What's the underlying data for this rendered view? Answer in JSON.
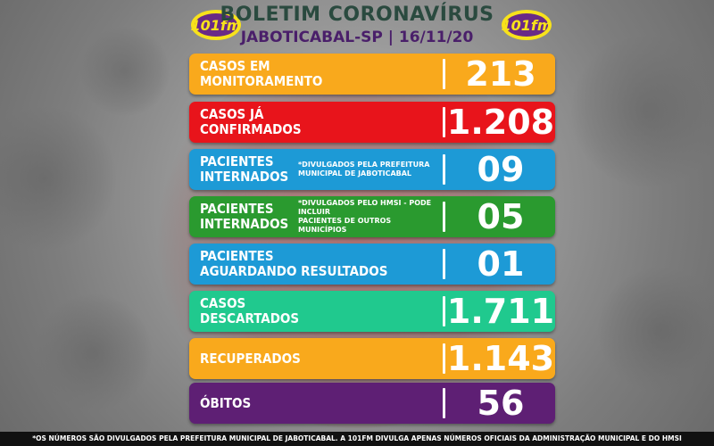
{
  "header": {
    "title": "BOLETIM CORONAVÍRUS",
    "subtitle": "JABOTICABAL-SP | 16/11/20",
    "logo_text": "101fm"
  },
  "colors": {
    "orange": "#f9a91c",
    "red": "#e8141b",
    "blue": "#1d9ad6",
    "green": "#2a9a2f",
    "teal": "#20c98e",
    "purple": "#5e1f74"
  },
  "rows": [
    {
      "label_1": "CASOS EM",
      "label_2": "MONITORAMENTO",
      "note_1": "",
      "note_2": "",
      "value": "213",
      "color": "#f9a91c"
    },
    {
      "label_1": "CASOS JÁ",
      "label_2": "CONFIRMADOS",
      "note_1": "",
      "note_2": "",
      "value": "1.208",
      "color": "#e8141b"
    },
    {
      "label_1": "PACIENTES",
      "label_2": "INTERNADOS",
      "note_1": "*DIVULGADOS PELA PREFEITURA",
      "note_2": "MUNICIPAL DE JABOTICABAL",
      "value": "09",
      "color": "#1d9ad6"
    },
    {
      "label_1": "PACIENTES",
      "label_2": "INTERNADOS",
      "note_1": "*DIVULGADOS PELO HMSI - PODE INCLUIR",
      "note_2": "PACIENTES DE OUTROS MUNICÍPIOS",
      "value": "05",
      "color": "#2a9a2f"
    },
    {
      "label_1": "PACIENTES",
      "label_2": "AGUARDANDO RESULTADOS",
      "note_1": "",
      "note_2": "",
      "value": "01",
      "color": "#1d9ad6"
    },
    {
      "label_1": "CASOS",
      "label_2": "DESCARTADOS",
      "note_1": "",
      "note_2": "",
      "value": "1.711",
      "color": "#20c98e"
    },
    {
      "label_1": "RECUPERADOS",
      "label_2": "",
      "note_1": "",
      "note_2": "",
      "value": "1.143",
      "color": "#f9a91c"
    },
    {
      "label_1": "ÓBITOS",
      "label_2": "",
      "note_1": "",
      "note_2": "",
      "value": "56",
      "color": "#5e1f74"
    }
  ],
  "footer": {
    "text": "*OS NÚMEROS SÃO DIVULGADOS PELA PREFEITURA MUNICIPAL DE JABOTICABAL. A 101FM DIVULGA APENAS NÚMEROS OFICIAIS DA ADMINISTRAÇÃO MUNICIPAL E DO HMSI"
  }
}
